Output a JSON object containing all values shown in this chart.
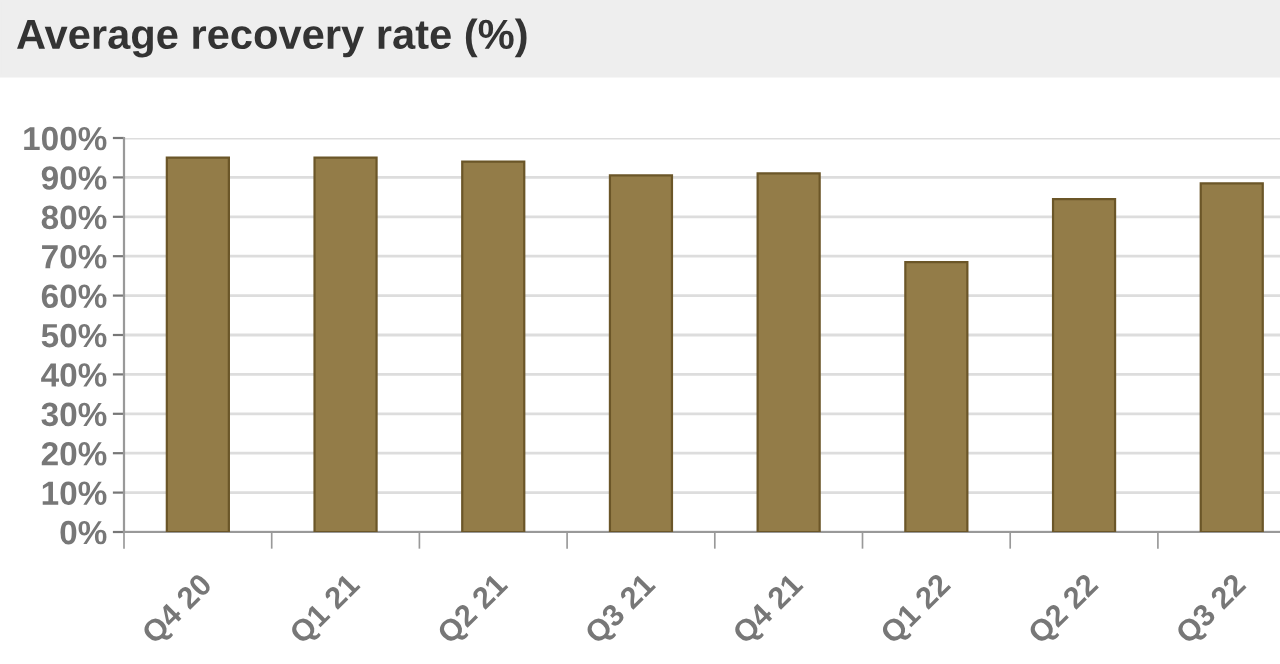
{
  "chart_data": {
    "type": "bar",
    "title": "Average recovery rate (%)",
    "categories": [
      "Q4 20",
      "Q1 21",
      "Q2 21",
      "Q3 21",
      "Q4 21",
      "Q1 22",
      "Q2 22",
      "Q3 22"
    ],
    "values": [
      95,
      95,
      94,
      90.5,
      91,
      68.5,
      84.5,
      88.5
    ],
    "color": "#937c48",
    "ylim": [
      0,
      100
    ],
    "yticks": [
      {
        "value": 0,
        "label": "0%"
      },
      {
        "value": 10,
        "label": "10%"
      },
      {
        "value": 20,
        "label": "20%"
      },
      {
        "value": 30,
        "label": "30%"
      },
      {
        "value": 40,
        "label": "40%"
      },
      {
        "value": 50,
        "label": "50%"
      },
      {
        "value": 60,
        "label": "60%"
      },
      {
        "value": 70,
        "label": "70%"
      },
      {
        "value": 80,
        "label": "80%"
      },
      {
        "value": 90,
        "label": "90%"
      },
      {
        "value": 100,
        "label": "100%"
      }
    ],
    "grid": "y"
  }
}
